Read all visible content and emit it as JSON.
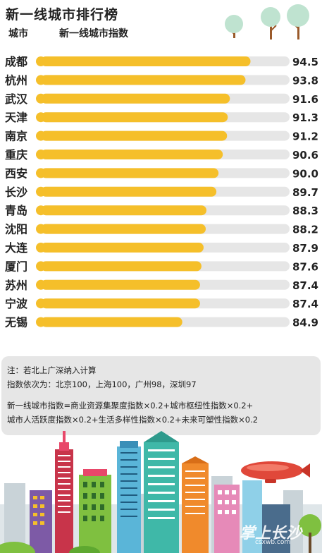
{
  "header": {
    "title": "新一线城市排行榜",
    "col_city": "城市",
    "col_index": "新一线城市指数"
  },
  "chart_data": {
    "type": "bar",
    "orientation": "horizontal",
    "categories": [
      "成都",
      "杭州",
      "武汉",
      "天津",
      "南京",
      "重庆",
      "西安",
      "长沙",
      "青岛",
      "沈阳",
      "大连",
      "厦门",
      "苏州",
      "宁波",
      "无锡"
    ],
    "values": [
      94.5,
      93.8,
      91.6,
      91.3,
      91.2,
      90.6,
      90.0,
      89.7,
      88.3,
      88.2,
      87.9,
      87.6,
      87.4,
      87.4,
      84.9
    ],
    "value_labels": [
      "94.5",
      "93.8",
      "91.6",
      "91.3",
      "91.2",
      "90.6",
      "90.0",
      "89.7",
      "88.3",
      "88.2",
      "87.9",
      "87.6",
      "87.4",
      "87.4",
      "84.9"
    ],
    "xlim": [
      65,
      100
    ],
    "bar_color": "#f5bf2a",
    "track_color": "#e6e6e6",
    "dot_color": "#f5bf2a"
  },
  "notes": {
    "line1": "注：若北上广深纳入计算",
    "line2": "指数依次为：北京100，上海100，广州98，深圳97",
    "line3": "新一线城市指数=商业资源集聚度指数×0.2+城市枢纽性指数×0.2+",
    "line4": "城市人活跃度指数×0.2+生活多样性指数×0.2+未来可塑性指数×0.2"
  },
  "watermark": {
    "main": "掌上长沙",
    "sub": "csxwb.com"
  }
}
